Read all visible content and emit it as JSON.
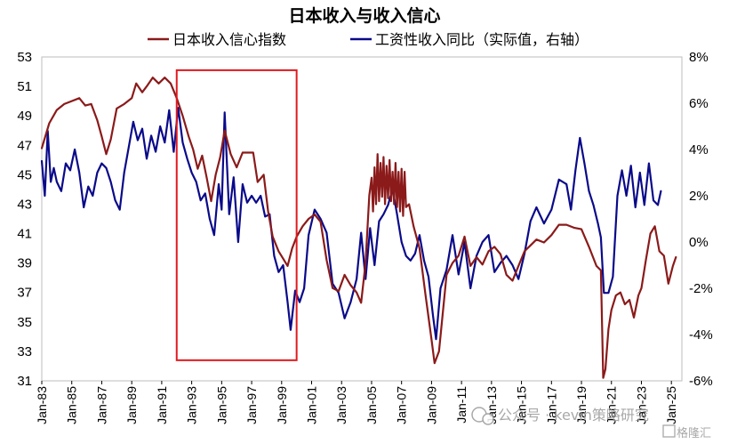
{
  "chart_data": {
    "type": "line",
    "title": "日本收入与收入信心",
    "legend": [
      "日本收入信心指数",
      "工资性收入同比（实际值，右轴）"
    ],
    "colors": {
      "confidence": "#8B1A1A",
      "wage": "#0A0A8A",
      "highlight": "#E0191F"
    },
    "x_ticks": [
      "Jan-83",
      "Jan-85",
      "Jan-87",
      "Jan-89",
      "Jan-91",
      "Jan-93",
      "Jan-95",
      "Jan-97",
      "Jan-99",
      "Jan-01",
      "Jan-03",
      "Jan-05",
      "Jan-07",
      "Jan-09",
      "Jan-11",
      "Jan-13",
      "Jan-15",
      "Jan-17",
      "Jan-19",
      "Jan-21",
      "Jan-23",
      "Jan-25"
    ],
    "x_range": [
      1983.0,
      2025.7
    ],
    "y_left": {
      "min": 31,
      "max": 53,
      "ticks": [
        "31",
        "33",
        "35",
        "37",
        "39",
        "41",
        "43",
        "45",
        "47",
        "49",
        "51",
        "53"
      ]
    },
    "y_right": {
      "min": -6,
      "max": 8,
      "ticks": [
        "-6%",
        "-4%",
        "-2%",
        "0%",
        "2%",
        "4%",
        "6%",
        "8%"
      ]
    },
    "highlight_box": {
      "x_start": 1992.0,
      "x_end": 2000.0,
      "y_left_low": 32.4,
      "y_left_high": 52.1
    },
    "series": [
      {
        "name": "日本收入信心指数",
        "axis": "left",
        "points": [
          [
            1983.0,
            46.8
          ],
          [
            1983.5,
            48.5
          ],
          [
            1984.0,
            49.4
          ],
          [
            1984.5,
            49.8
          ],
          [
            1985.0,
            50.0
          ],
          [
            1985.5,
            50.2
          ],
          [
            1985.9,
            49.7
          ],
          [
            1986.3,
            49.8
          ],
          [
            1986.7,
            48.7
          ],
          [
            1987.0,
            47.6
          ],
          [
            1987.3,
            46.4
          ],
          [
            1987.6,
            47.4
          ],
          [
            1988.0,
            49.5
          ],
          [
            1988.5,
            49.8
          ],
          [
            1989.0,
            50.2
          ],
          [
            1989.3,
            51.2
          ],
          [
            1989.7,
            50.6
          ],
          [
            1990.0,
            51.0
          ],
          [
            1990.4,
            51.6
          ],
          [
            1990.8,
            51.2
          ],
          [
            1991.2,
            51.6
          ],
          [
            1991.6,
            51.2
          ],
          [
            1992.0,
            50.2
          ],
          [
            1992.4,
            49.0
          ],
          [
            1992.8,
            47.6
          ],
          [
            1993.1,
            46.7
          ],
          [
            1993.4,
            45.4
          ],
          [
            1993.7,
            46.3
          ],
          [
            1994.0,
            44.8
          ],
          [
            1994.3,
            43.2
          ],
          [
            1994.6,
            45.0
          ],
          [
            1994.9,
            46.2
          ],
          [
            1995.2,
            48.0
          ],
          [
            1995.6,
            46.4
          ],
          [
            1996.0,
            45.5
          ],
          [
            1996.4,
            46.5
          ],
          [
            1996.8,
            46.5
          ],
          [
            1997.1,
            46.5
          ],
          [
            1997.4,
            44.5
          ],
          [
            1997.8,
            45.0
          ],
          [
            1998.1,
            42.5
          ],
          [
            1998.4,
            40.8
          ],
          [
            1998.8,
            39.8
          ],
          [
            1999.1,
            39.3
          ],
          [
            1999.4,
            38.8
          ],
          [
            1999.7,
            40.0
          ],
          [
            2000.0,
            40.8
          ],
          [
            2000.4,
            41.5
          ],
          [
            2000.8,
            42.0
          ],
          [
            2001.2,
            42.3
          ],
          [
            2001.6,
            41.8
          ],
          [
            2002.0,
            39.2
          ],
          [
            2002.4,
            37.3
          ],
          [
            2002.8,
            37.1
          ],
          [
            2003.2,
            38.2
          ],
          [
            2003.6,
            37.5
          ],
          [
            2004.0,
            37.0
          ],
          [
            2004.3,
            36.3
          ],
          [
            2004.6,
            39.0
          ],
          [
            2004.85,
            43.6
          ],
          [
            2005.0,
            44.8
          ],
          [
            2005.1,
            42.5
          ],
          [
            2005.2,
            45.5
          ],
          [
            2005.3,
            43.0
          ],
          [
            2005.4,
            46.4
          ],
          [
            2005.5,
            43.2
          ],
          [
            2005.6,
            45.8
          ],
          [
            2005.7,
            43.5
          ],
          [
            2005.8,
            46.2
          ],
          [
            2005.9,
            43.0
          ],
          [
            2006.0,
            45.6
          ],
          [
            2006.1,
            43.4
          ],
          [
            2006.2,
            46.0
          ],
          [
            2006.3,
            43.2
          ],
          [
            2006.4,
            45.2
          ],
          [
            2006.5,
            43.0
          ],
          [
            2006.6,
            45.8
          ],
          [
            2006.7,
            42.8
          ],
          [
            2006.8,
            45.2
          ],
          [
            2006.9,
            42.5
          ],
          [
            2007.0,
            45.4
          ],
          [
            2007.1,
            42.2
          ],
          [
            2007.2,
            45.2
          ],
          [
            2007.3,
            42.8
          ],
          [
            2007.5,
            43.0
          ],
          [
            2007.8,
            41.5
          ],
          [
            2008.2,
            40.0
          ],
          [
            2008.6,
            36.8
          ],
          [
            2009.0,
            33.8
          ],
          [
            2009.2,
            32.2
          ],
          [
            2009.5,
            33.0
          ],
          [
            2010.0,
            38.2
          ],
          [
            2010.4,
            39.0
          ],
          [
            2010.8,
            39.5
          ],
          [
            2011.2,
            40.8
          ],
          [
            2011.6,
            38.8
          ],
          [
            2012.0,
            39.4
          ],
          [
            2012.4,
            38.9
          ],
          [
            2012.8,
            39.8
          ],
          [
            2013.2,
            40.1
          ],
          [
            2013.6,
            39.6
          ],
          [
            2014.0,
            38.2
          ],
          [
            2014.4,
            37.8
          ],
          [
            2014.8,
            38.8
          ],
          [
            2015.2,
            39.8
          ],
          [
            2015.6,
            40.2
          ],
          [
            2016.0,
            40.6
          ],
          [
            2016.5,
            40.4
          ],
          [
            2017.0,
            40.9
          ],
          [
            2017.5,
            41.6
          ],
          [
            2018.0,
            41.6
          ],
          [
            2018.5,
            41.4
          ],
          [
            2019.0,
            41.3
          ],
          [
            2019.5,
            40.1
          ],
          [
            2020.0,
            38.8
          ],
          [
            2020.3,
            38.5
          ],
          [
            2020.45,
            31.2
          ],
          [
            2020.6,
            31.8
          ],
          [
            2020.8,
            34.5
          ],
          [
            2021.0,
            35.8
          ],
          [
            2021.3,
            36.8
          ],
          [
            2021.6,
            37.0
          ],
          [
            2021.9,
            36.2
          ],
          [
            2022.2,
            36.5
          ],
          [
            2022.5,
            35.3
          ],
          [
            2022.8,
            36.8
          ],
          [
            2023.0,
            37.3
          ],
          [
            2023.3,
            39.2
          ],
          [
            2023.6,
            41.0
          ],
          [
            2023.9,
            41.5
          ],
          [
            2024.2,
            39.8
          ],
          [
            2024.5,
            39.5
          ],
          [
            2024.8,
            37.6
          ],
          [
            2025.1,
            38.8
          ],
          [
            2025.3,
            39.4
          ]
        ]
      },
      {
        "name": "工资性收入同比（实际值，右轴）",
        "axis": "right",
        "points": [
          [
            1983.0,
            3.5
          ],
          [
            1983.2,
            2.0
          ],
          [
            1983.4,
            4.8
          ],
          [
            1983.6,
            2.6
          ],
          [
            1983.8,
            3.2
          ],
          [
            1984.0,
            2.6
          ],
          [
            1984.3,
            2.2
          ],
          [
            1984.6,
            3.4
          ],
          [
            1984.9,
            3.1
          ],
          [
            1985.2,
            4.0
          ],
          [
            1985.5,
            3.0
          ],
          [
            1985.8,
            1.5
          ],
          [
            1986.1,
            2.4
          ],
          [
            1986.4,
            2.0
          ],
          [
            1986.7,
            3.0
          ],
          [
            1987.0,
            3.4
          ],
          [
            1987.3,
            3.2
          ],
          [
            1987.6,
            2.6
          ],
          [
            1987.9,
            1.8
          ],
          [
            1988.2,
            1.4
          ],
          [
            1988.5,
            3.0
          ],
          [
            1988.8,
            4.1
          ],
          [
            1989.1,
            5.2
          ],
          [
            1989.4,
            4.4
          ],
          [
            1989.7,
            4.9
          ],
          [
            1990.0,
            3.6
          ],
          [
            1990.3,
            4.6
          ],
          [
            1990.6,
            3.9
          ],
          [
            1990.9,
            5.0
          ],
          [
            1991.2,
            4.3
          ],
          [
            1991.5,
            5.7
          ],
          [
            1991.8,
            3.9
          ],
          [
            1992.1,
            5.8
          ],
          [
            1992.4,
            4.3
          ],
          [
            1992.7,
            3.6
          ],
          [
            1993.0,
            3.0
          ],
          [
            1993.3,
            2.6
          ],
          [
            1993.6,
            1.8
          ],
          [
            1993.9,
            2.1
          ],
          [
            1994.2,
            1.0
          ],
          [
            1994.5,
            0.3
          ],
          [
            1994.8,
            2.5
          ],
          [
            1995.0,
            1.4
          ],
          [
            1995.2,
            5.6
          ],
          [
            1995.5,
            1.2
          ],
          [
            1995.8,
            2.8
          ],
          [
            1996.1,
            0.0
          ],
          [
            1996.4,
            2.5
          ],
          [
            1996.7,
            1.7
          ],
          [
            1997.0,
            2.0
          ],
          [
            1997.3,
            1.7
          ],
          [
            1997.6,
            2.0
          ],
          [
            1997.9,
            1.1
          ],
          [
            1998.2,
            1.2
          ],
          [
            1998.5,
            -0.6
          ],
          [
            1998.8,
            -1.3
          ],
          [
            1999.1,
            -1.0
          ],
          [
            1999.4,
            -2.6
          ],
          [
            1999.6,
            -3.8
          ],
          [
            1999.9,
            -2.1
          ],
          [
            2000.2,
            -2.6
          ],
          [
            2000.5,
            -2.0
          ],
          [
            2000.8,
            0.3
          ],
          [
            2001.2,
            1.4
          ],
          [
            2001.6,
            1.0
          ],
          [
            2002.0,
            0.4
          ],
          [
            2002.4,
            -1.8
          ],
          [
            2002.8,
            -2.2
          ],
          [
            2003.2,
            -3.3
          ],
          [
            2003.6,
            -2.6
          ],
          [
            2004.0,
            -1.6
          ],
          [
            2004.3,
            0.4
          ],
          [
            2004.6,
            -1.6
          ],
          [
            2004.9,
            0.6
          ],
          [
            2005.2,
            -1.0
          ],
          [
            2005.5,
            0.9
          ],
          [
            2005.8,
            1.2
          ],
          [
            2006.1,
            1.6
          ],
          [
            2006.4,
            2.3
          ],
          [
            2006.7,
            1.2
          ],
          [
            2007.0,
            0.0
          ],
          [
            2007.3,
            -0.6
          ],
          [
            2007.6,
            -0.8
          ],
          [
            2007.9,
            -0.5
          ],
          [
            2008.2,
            0.3
          ],
          [
            2008.5,
            -0.8
          ],
          [
            2008.8,
            -1.5
          ],
          [
            2009.1,
            -3.2
          ],
          [
            2009.3,
            -4.2
          ],
          [
            2009.6,
            -2.0
          ],
          [
            2010.0,
            -1.2
          ],
          [
            2010.4,
            0.3
          ],
          [
            2010.8,
            -1.4
          ],
          [
            2011.2,
            0.0
          ],
          [
            2011.6,
            -2.0
          ],
          [
            2012.0,
            -0.6
          ],
          [
            2012.4,
            0.0
          ],
          [
            2012.8,
            0.3
          ],
          [
            2013.2,
            -1.3
          ],
          [
            2013.6,
            -0.9
          ],
          [
            2014.0,
            -0.6
          ],
          [
            2014.4,
            -1.0
          ],
          [
            2014.8,
            -1.6
          ],
          [
            2015.2,
            -0.5
          ],
          [
            2015.6,
            0.9
          ],
          [
            2016.0,
            1.5
          ],
          [
            2016.5,
            0.8
          ],
          [
            2017.0,
            1.4
          ],
          [
            2017.5,
            2.7
          ],
          [
            2018.0,
            2.5
          ],
          [
            2018.3,
            1.4
          ],
          [
            2018.6,
            3.1
          ],
          [
            2018.9,
            4.5
          ],
          [
            2019.2,
            3.4
          ],
          [
            2019.5,
            2.2
          ],
          [
            2019.8,
            1.6
          ],
          [
            2020.1,
            0.8
          ],
          [
            2020.3,
            0.2
          ],
          [
            2020.5,
            -2.2
          ],
          [
            2020.8,
            -2.2
          ],
          [
            2021.1,
            -1.5
          ],
          [
            2021.4,
            2.0
          ],
          [
            2021.7,
            3.1
          ],
          [
            2022.0,
            2.0
          ],
          [
            2022.3,
            3.3
          ],
          [
            2022.6,
            1.5
          ],
          [
            2022.9,
            3.0
          ],
          [
            2023.2,
            1.6
          ],
          [
            2023.5,
            3.4
          ],
          [
            2023.8,
            1.8
          ],
          [
            2024.1,
            1.6
          ],
          [
            2024.3,
            2.2
          ]
        ]
      }
    ]
  },
  "watermark": "公众号 · kevin策略研究",
  "watermark2": "格隆汇"
}
